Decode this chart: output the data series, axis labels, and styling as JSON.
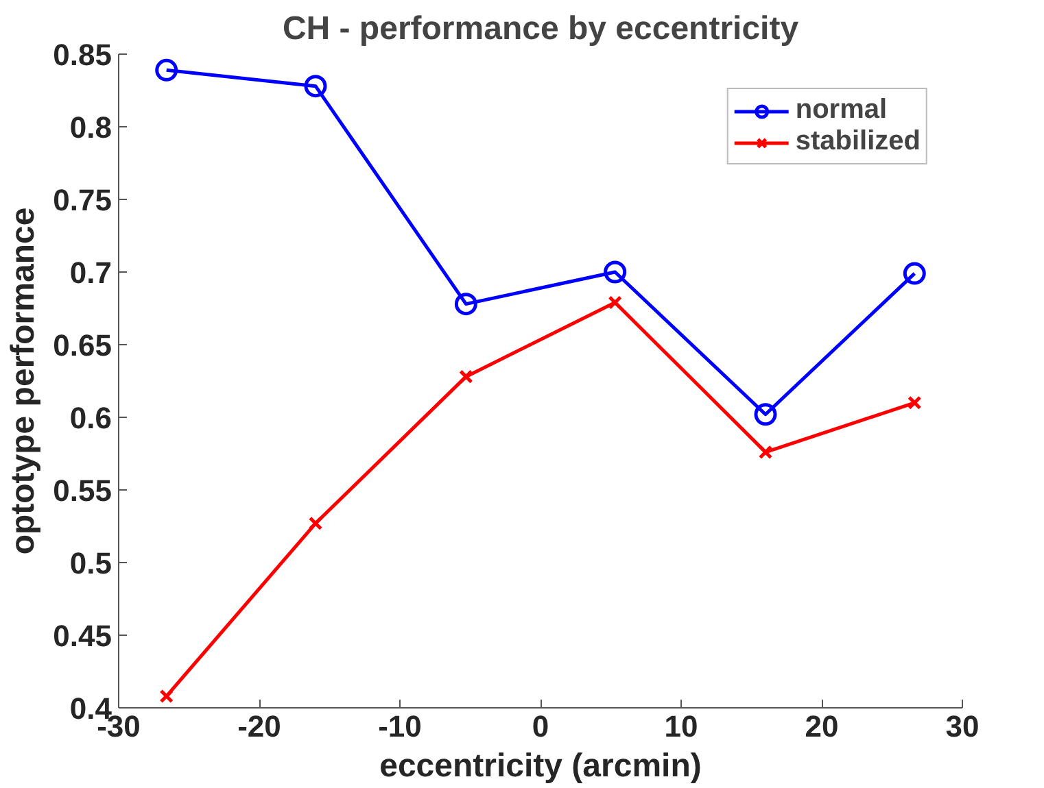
{
  "chart_data": {
    "type": "line",
    "title": "CH - performance by eccentricity",
    "xlabel": "eccentricity (arcmin)",
    "ylabel": "optotype performance",
    "x": [
      -26.6,
      -16,
      -5.3,
      5.3,
      16,
      26.6
    ],
    "series": [
      {
        "name": "normal",
        "color": "#0000ff",
        "marker": "circle",
        "values": [
          0.839,
          0.828,
          0.678,
          0.7,
          0.602,
          0.699
        ]
      },
      {
        "name": "stabilized",
        "color": "#ff0000",
        "marker": "cross",
        "values": [
          0.408,
          0.527,
          0.628,
          0.679,
          0.576,
          0.61
        ]
      }
    ],
    "xlim": [
      -30,
      30
    ],
    "xticks": [
      -30,
      -20,
      -10,
      0,
      10,
      20,
      30
    ],
    "ylim": [
      0.4,
      0.85
    ],
    "yticks": [
      {
        "value": 0.4,
        "label": "0.4"
      },
      0.45,
      {
        "value": 0.5,
        "label": "0.5"
      },
      0.55,
      {
        "value": 0.6,
        "label": "0.6"
      },
      0.65,
      {
        "value": 0.7,
        "label": "0.7"
      },
      0.75,
      {
        "value": 0.8,
        "label": "0.8"
      },
      0.85
    ],
    "grid": false,
    "legend": "top right",
    "line_style": "solid"
  }
}
